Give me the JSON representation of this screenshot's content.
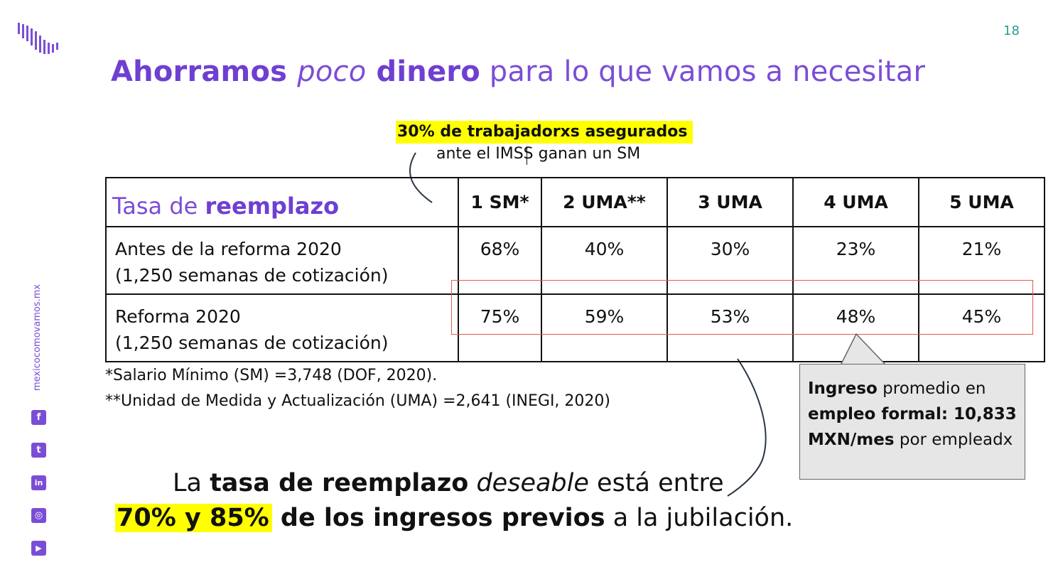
{
  "page_number": "18",
  "title": {
    "part1": "Ahorramos ",
    "part2": "poco",
    "part3": " dinero",
    "part4": " para lo que vamos a necesitar"
  },
  "top_note": {
    "highlight": "30% de trabajadorxs asegurados",
    "text": "ante el IMSS ganan un SM"
  },
  "table": {
    "header_label_part1": "Tasa de ",
    "header_label_part2": "reemplazo",
    "columns": [
      "1 SM*",
      "2 UMA**",
      "3 UMA",
      "4 UMA",
      "5 UMA"
    ],
    "rows": [
      {
        "label_line1": "Antes de la reforma 2020",
        "label_line2": "(1,250 semanas de cotización)",
        "values": [
          "68%",
          "40%",
          "30%",
          "23%",
          "21%"
        ]
      },
      {
        "label_line1": "Reforma 2020",
        "label_line2": "(1,250 semanas de cotización)",
        "values": [
          "75%",
          "59%",
          "53%",
          "48%",
          "45%"
        ]
      }
    ]
  },
  "footnotes": [
    "*Salario Mínimo (SM) =3,748 (DOF, 2020).",
    "**Unidad de Medida y Actualización (UMA)  =2,641 (INEGI, 2020)"
  ],
  "callout": {
    "b1": "Ingreso",
    "t1": " promedio en",
    "b2": "empleo formal: 10,833 MXN/mes",
    "t2": " por empleadx"
  },
  "bottom": {
    "line1_pre": "La ",
    "line1_bold": "tasa de reemplazo",
    "line1_ital": " deseable",
    "line1_post": " está entre",
    "line2_hl": "70% y 85%",
    "line2_bold": " de los ingresos previos",
    "line2_post": " a la jubilación."
  },
  "sidebar": {
    "url": "mexicocomovamos.mx",
    "social_icons": [
      "facebook-icon",
      "twitter-icon",
      "linkedin-icon",
      "instagram-icon",
      "youtube-icon"
    ]
  },
  "colors": {
    "brand_purple": "#7b4dd6",
    "highlight_yellow": "#ffff00",
    "box_red": "#e05a4a",
    "page_number_teal": "#2a9d8f"
  }
}
